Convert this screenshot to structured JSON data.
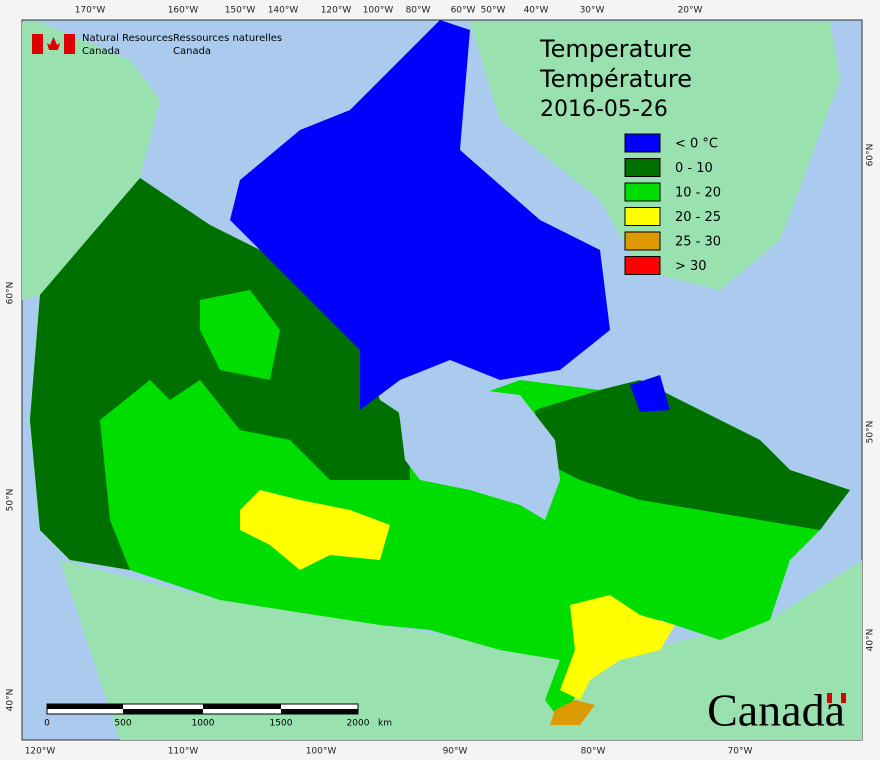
{
  "map": {
    "title": "Temperature",
    "title_fr": "Température",
    "date": "2016-05-26",
    "legend": [
      {
        "label": "< 0 °C",
        "color": "#0000ff"
      },
      {
        "label": "0 - 10",
        "color": "#007000"
      },
      {
        "label": "10 - 20",
        "color": "#00dd00"
      },
      {
        "label": "20 - 25",
        "color": "#ffff00"
      },
      {
        "label": "25 - 30",
        "color": "#dd9900"
      },
      {
        "label": "> 30",
        "color": "#ff0000"
      }
    ],
    "top_longitude_labels": [
      "170°W",
      "160°W",
      "150°W",
      "140°W",
      "120°W",
      "100°W",
      "80°W",
      "60°W",
      "50°W",
      "40°W",
      "30°W",
      "20°W"
    ],
    "bottom_longitude_labels": [
      "120°W",
      "110°W",
      "100°W",
      "90°W",
      "80°W",
      "70°W"
    ],
    "left_latitude_labels": [
      "60°N",
      "50°N",
      "40°N"
    ],
    "right_latitude_labels": [
      "60°N",
      "50°N",
      "40°N"
    ],
    "scale": {
      "labels": [
        "0",
        "500",
        "1000",
        "1500",
        "2000"
      ],
      "unit": "km"
    }
  },
  "logo": {
    "line1": "Natural Resources",
    "line2": "Canada",
    "line1_fr": "Ressources naturelles",
    "line2_fr": "Canada"
  },
  "wordmark": "Canada"
}
